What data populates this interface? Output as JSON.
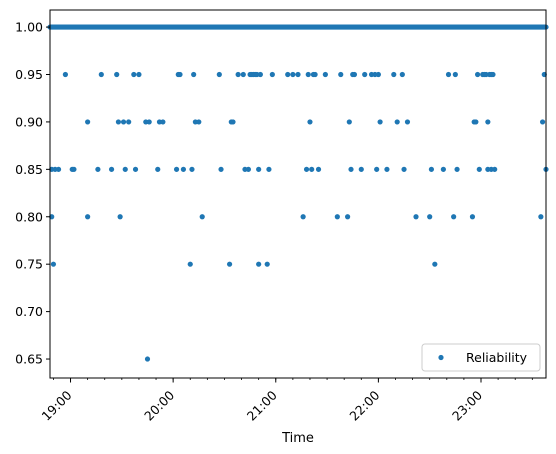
{
  "chart_data": {
    "type": "scatter",
    "title": "",
    "xlabel": "Time",
    "ylabel": "",
    "xlim": [
      "18:48",
      "23:38"
    ],
    "ylim": [
      0.63,
      1.018
    ],
    "x_ticks": [
      "19:00",
      "20:00",
      "21:00",
      "22:00",
      "23:00"
    ],
    "y_ticks": [
      "0.65",
      "0.70",
      "0.75",
      "0.80",
      "0.85",
      "0.90",
      "0.95",
      "1.00"
    ],
    "grid": false,
    "legend": {
      "position": "lower-right",
      "entries": [
        "Reliability"
      ]
    },
    "series": [
      {
        "name": "Reliability",
        "color": "#1f77b4",
        "baseline": {
          "value": 1.0,
          "from": "18:48",
          "to": "23:38",
          "note": "dense run of points at 1.00 across the whole time span"
        },
        "points": [
          [
            "18:49",
            0.85
          ],
          [
            "18:49",
            0.8
          ],
          [
            "18:50",
            0.75
          ],
          [
            "18:51",
            0.85
          ],
          [
            "18:53",
            0.85
          ],
          [
            "18:57",
            0.95
          ],
          [
            "19:01",
            0.85
          ],
          [
            "19:02",
            0.85
          ],
          [
            "19:10",
            0.9
          ],
          [
            "19:10",
            0.8
          ],
          [
            "19:16",
            0.85
          ],
          [
            "19:18",
            0.95
          ],
          [
            "19:24",
            0.85
          ],
          [
            "19:27",
            0.95
          ],
          [
            "19:28",
            0.9
          ],
          [
            "19:29",
            0.8
          ],
          [
            "19:31",
            0.9
          ],
          [
            "19:32",
            0.85
          ],
          [
            "19:34",
            0.9
          ],
          [
            "19:37",
            0.95
          ],
          [
            "19:38",
            0.85
          ],
          [
            "19:40",
            0.95
          ],
          [
            "19:44",
            0.9
          ],
          [
            "19:45",
            0.65
          ],
          [
            "19:46",
            0.9
          ],
          [
            "19:51",
            0.85
          ],
          [
            "19:52",
            0.9
          ],
          [
            "19:54",
            0.9
          ],
          [
            "20:02",
            0.85
          ],
          [
            "20:03",
            0.95
          ],
          [
            "20:04",
            0.95
          ],
          [
            "20:06",
            0.85
          ],
          [
            "20:10",
            0.75
          ],
          [
            "20:11",
            0.85
          ],
          [
            "20:12",
            0.95
          ],
          [
            "20:13",
            0.9
          ],
          [
            "20:15",
            0.9
          ],
          [
            "20:17",
            0.8
          ],
          [
            "20:27",
            0.95
          ],
          [
            "20:28",
            0.85
          ],
          [
            "20:33",
            0.75
          ],
          [
            "20:34",
            0.9
          ],
          [
            "20:35",
            0.9
          ],
          [
            "20:38",
            0.95
          ],
          [
            "20:41",
            0.95
          ],
          [
            "20:42",
            0.85
          ],
          [
            "20:44",
            0.85
          ],
          [
            "20:45",
            0.95
          ],
          [
            "20:46",
            0.95
          ],
          [
            "20:47",
            0.95
          ],
          [
            "20:48",
            0.95
          ],
          [
            "20:49",
            0.95
          ],
          [
            "20:50",
            0.85
          ],
          [
            "20:50",
            0.75
          ],
          [
            "20:51",
            0.95
          ],
          [
            "20:55",
            0.75
          ],
          [
            "20:56",
            0.85
          ],
          [
            "20:58",
            0.95
          ],
          [
            "21:07",
            0.95
          ],
          [
            "21:10",
            0.95
          ],
          [
            "21:13",
            0.95
          ],
          [
            "21:16",
            0.8
          ],
          [
            "21:18",
            0.85
          ],
          [
            "21:19",
            0.95
          ],
          [
            "21:20",
            0.9
          ],
          [
            "21:21",
            0.85
          ],
          [
            "21:22",
            0.95
          ],
          [
            "21:23",
            0.95
          ],
          [
            "21:25",
            0.85
          ],
          [
            "21:29",
            0.95
          ],
          [
            "21:36",
            0.8
          ],
          [
            "21:38",
            0.95
          ],
          [
            "21:42",
            0.8
          ],
          [
            "21:43",
            0.9
          ],
          [
            "21:44",
            0.85
          ],
          [
            "21:45",
            0.95
          ],
          [
            "21:46",
            0.95
          ],
          [
            "21:50",
            0.85
          ],
          [
            "21:52",
            0.95
          ],
          [
            "21:56",
            0.95
          ],
          [
            "21:58",
            0.95
          ],
          [
            "21:59",
            0.85
          ],
          [
            "22:00",
            0.95
          ],
          [
            "22:01",
            0.9
          ],
          [
            "22:05",
            0.85
          ],
          [
            "22:09",
            0.95
          ],
          [
            "22:11",
            0.9
          ],
          [
            "22:14",
            0.95
          ],
          [
            "22:15",
            0.85
          ],
          [
            "22:17",
            0.9
          ],
          [
            "22:22",
            0.8
          ],
          [
            "22:30",
            0.8
          ],
          [
            "22:31",
            0.85
          ],
          [
            "22:33",
            0.75
          ],
          [
            "22:38",
            0.85
          ],
          [
            "22:41",
            0.95
          ],
          [
            "22:44",
            0.8
          ],
          [
            "22:45",
            0.95
          ],
          [
            "22:46",
            0.85
          ],
          [
            "22:55",
            0.8
          ],
          [
            "22:56",
            0.9
          ],
          [
            "22:57",
            0.9
          ],
          [
            "22:58",
            0.95
          ],
          [
            "22:59",
            0.85
          ],
          [
            "23:01",
            0.95
          ],
          [
            "23:02",
            0.95
          ],
          [
            "23:03",
            0.95
          ],
          [
            "23:04",
            0.9
          ],
          [
            "23:04",
            0.85
          ],
          [
            "23:05",
            0.95
          ],
          [
            "23:06",
            0.95
          ],
          [
            "23:06",
            0.85
          ],
          [
            "23:07",
            0.95
          ],
          [
            "23:08",
            0.85
          ],
          [
            "23:35",
            0.8
          ],
          [
            "23:36",
            0.9
          ],
          [
            "23:37",
            0.95
          ],
          [
            "23:38",
            0.85
          ]
        ]
      }
    ]
  }
}
